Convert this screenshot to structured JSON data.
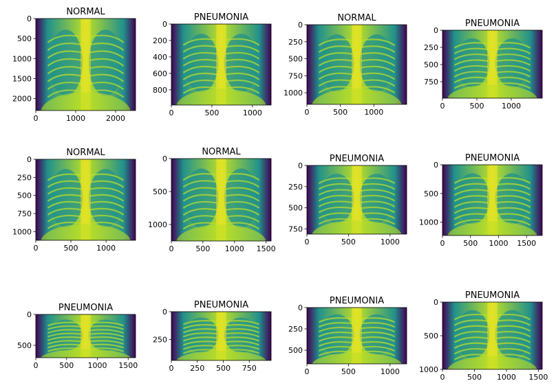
{
  "colors": {
    "dark": "#440154",
    "mid": "#21918c",
    "bright": "#bddf26",
    "peak": "#fde725"
  },
  "panels": [
    {
      "title": "NORMAL",
      "xticks": [
        "0",
        "1000",
        "2000"
      ],
      "yticks": [
        "0",
        "500",
        "1000",
        "1500",
        "2000"
      ],
      "xrange": [
        0,
        2500
      ],
      "yrange": [
        0,
        2300
      ]
    },
    {
      "title": "PNEUMONIA",
      "xticks": [
        "0",
        "500",
        "1000"
      ],
      "yticks": [
        "0",
        "200",
        "400",
        "600",
        "800"
      ],
      "xrange": [
        0,
        1230
      ],
      "yrange": [
        0,
        985
      ]
    },
    {
      "title": "NORMAL",
      "xticks": [
        "0",
        "500",
        "1000"
      ],
      "yticks": [
        "0",
        "250",
        "500",
        "750",
        "1000"
      ],
      "xrange": [
        0,
        1490
      ],
      "yrange": [
        0,
        1170
      ]
    },
    {
      "title": "PNEUMONIA",
      "xticks": [
        "0",
        "500",
        "1000"
      ],
      "yticks": [
        "0",
        "250",
        "500",
        "750"
      ],
      "xrange": [
        0,
        1450
      ],
      "yrange": [
        0,
        990
      ]
    },
    {
      "title": "NORMAL",
      "xticks": [
        "0",
        "500",
        "1000"
      ],
      "yticks": [
        "0",
        "250",
        "500",
        "750",
        "1000"
      ],
      "xrange": [
        0,
        1420
      ],
      "yrange": [
        0,
        1120
      ]
    },
    {
      "title": "NORMAL",
      "xticks": [
        "0",
        "500",
        "1000",
        "1500"
      ],
      "yticks": [
        "0",
        "500",
        "1000"
      ],
      "xrange": [
        0,
        1580
      ],
      "yrange": [
        0,
        1250
      ]
    },
    {
      "title": "PNEUMONIA",
      "xticks": [
        "0",
        "500",
        "1000"
      ],
      "yticks": [
        "0",
        "250",
        "500",
        "750"
      ],
      "xrange": [
        0,
        1200
      ],
      "yrange": [
        0,
        810
      ]
    },
    {
      "title": "PNEUMONIA",
      "xticks": [
        "0",
        "500",
        "1000",
        "1500"
      ],
      "yticks": [
        "0",
        "500",
        "1000"
      ],
      "xrange": [
        0,
        1780
      ],
      "yrange": [
        0,
        1230
      ]
    },
    {
      "title": "PNEUMONIA",
      "xticks": [
        "0",
        "500",
        "1000",
        "1500"
      ],
      "yticks": [
        "0",
        "500"
      ],
      "xrange": [
        0,
        1620
      ],
      "yrange": [
        0,
        700
      ]
    },
    {
      "title": "PNEUMONIA",
      "xticks": [
        "0",
        "250",
        "500",
        "750"
      ],
      "yticks": [
        "0",
        "250"
      ],
      "xrange": [
        0,
        960
      ],
      "yrange": [
        0,
        440
      ]
    },
    {
      "title": "PNEUMONIA",
      "xticks": [
        "0",
        "500",
        "1000"
      ],
      "yticks": [
        "0",
        "250",
        "500"
      ],
      "xrange": [
        0,
        1200
      ],
      "yrange": [
        0,
        660
      ]
    },
    {
      "title": "PNEUMONIA",
      "xticks": [
        "0",
        "500",
        "1000",
        "1500"
      ],
      "yticks": [
        "0",
        "500",
        "1000"
      ],
      "xrange": [
        0,
        1560
      ],
      "yrange": [
        0,
        1000
      ]
    }
  ]
}
